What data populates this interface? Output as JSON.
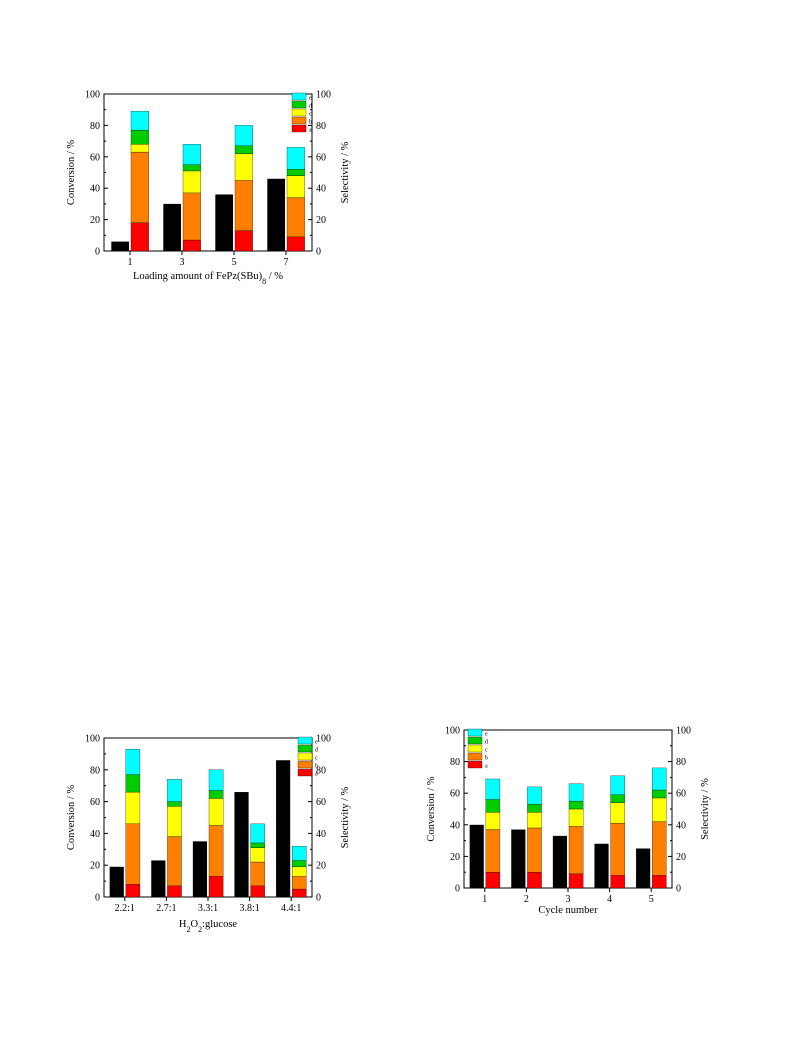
{
  "colors": {
    "conversion": "#000000",
    "a": "#ff0000",
    "b": "#ff8000",
    "c": "#ffff00",
    "d": "#00cc00",
    "e": "#00ffff"
  },
  "chart_data": [
    {
      "type": "bar",
      "xlabel": "Loading amount of FePz(SBu)",
      "xlabel_sub": "8",
      "xlabel_suffix": " / %",
      "ylabel": "Conversion / %",
      "y2label": "Selectivity / %",
      "ylim": [
        0,
        100
      ],
      "y2lim": [
        0,
        100
      ],
      "yticks": [
        "0",
        "20",
        "40",
        "60",
        "80",
        "100"
      ],
      "categories": [
        "1",
        "3",
        "5",
        "7"
      ],
      "conversion": [
        6,
        30,
        36,
        46
      ],
      "selectivity_series": [
        {
          "name": "a",
          "values": [
            18,
            7,
            13,
            9
          ]
        },
        {
          "name": "b",
          "values": [
            45,
            30,
            32,
            25
          ]
        },
        {
          "name": "c",
          "values": [
            5,
            14,
            17,
            14
          ]
        },
        {
          "name": "d",
          "values": [
            9,
            4,
            5,
            4
          ]
        },
        {
          "name": "e",
          "values": [
            12,
            13,
            13,
            14
          ]
        }
      ],
      "legend": [
        "e",
        "d",
        "c",
        "b",
        "a"
      ],
      "legend_position": "top-right",
      "grid": false
    },
    {
      "type": "bar",
      "xlabel": "H",
      "xlabel_parts": [
        "H",
        "2",
        "O",
        "2",
        ":glucose"
      ],
      "ylabel": "Conversion / %",
      "y2label": "Selectivity / %",
      "ylim": [
        0,
        100
      ],
      "y2lim": [
        0,
        100
      ],
      "yticks": [
        "0",
        "20",
        "40",
        "60",
        "80",
        "100"
      ],
      "categories": [
        "2.2:1",
        "2.7:1",
        "3.3:1",
        "3.8:1",
        "4.4:1"
      ],
      "conversion": [
        19,
        23,
        35,
        66,
        86
      ],
      "selectivity_series": [
        {
          "name": "a",
          "values": [
            8,
            7,
            13,
            7,
            5
          ]
        },
        {
          "name": "b",
          "values": [
            38,
            31,
            32,
            15,
            8
          ]
        },
        {
          "name": "c",
          "values": [
            20,
            19,
            17,
            9,
            6
          ]
        },
        {
          "name": "d",
          "values": [
            11,
            3,
            5,
            3,
            4
          ]
        },
        {
          "name": "e",
          "values": [
            16,
            14,
            13,
            12,
            9
          ]
        }
      ],
      "legend": [
        "e",
        "d",
        "c",
        "b",
        "a"
      ],
      "legend_position": "top-right",
      "grid": false
    },
    {
      "type": "bar",
      "xlabel": "Cycle number",
      "ylabel": "Conversion / %",
      "y2label": "Selectivity / %",
      "ylim": [
        0,
        100
      ],
      "y2lim": [
        0,
        100
      ],
      "yticks": [
        "0",
        "20",
        "40",
        "60",
        "80",
        "100"
      ],
      "categories": [
        "1",
        "2",
        "3",
        "4",
        "5"
      ],
      "conversion": [
        40,
        37,
        33,
        28,
        25
      ],
      "selectivity_series": [
        {
          "name": "a",
          "values": [
            10,
            10,
            9,
            8,
            8
          ]
        },
        {
          "name": "b",
          "values": [
            27,
            28,
            30,
            33,
            34
          ]
        },
        {
          "name": "c",
          "values": [
            11,
            10,
            11,
            13,
            15
          ]
        },
        {
          "name": "d",
          "values": [
            8,
            5,
            5,
            5,
            5
          ]
        },
        {
          "name": "e",
          "values": [
            13,
            11,
            11,
            12,
            14
          ]
        }
      ],
      "legend": [
        "e",
        "d",
        "c",
        "b",
        "a"
      ],
      "legend_position": "top-left",
      "grid": false
    }
  ]
}
